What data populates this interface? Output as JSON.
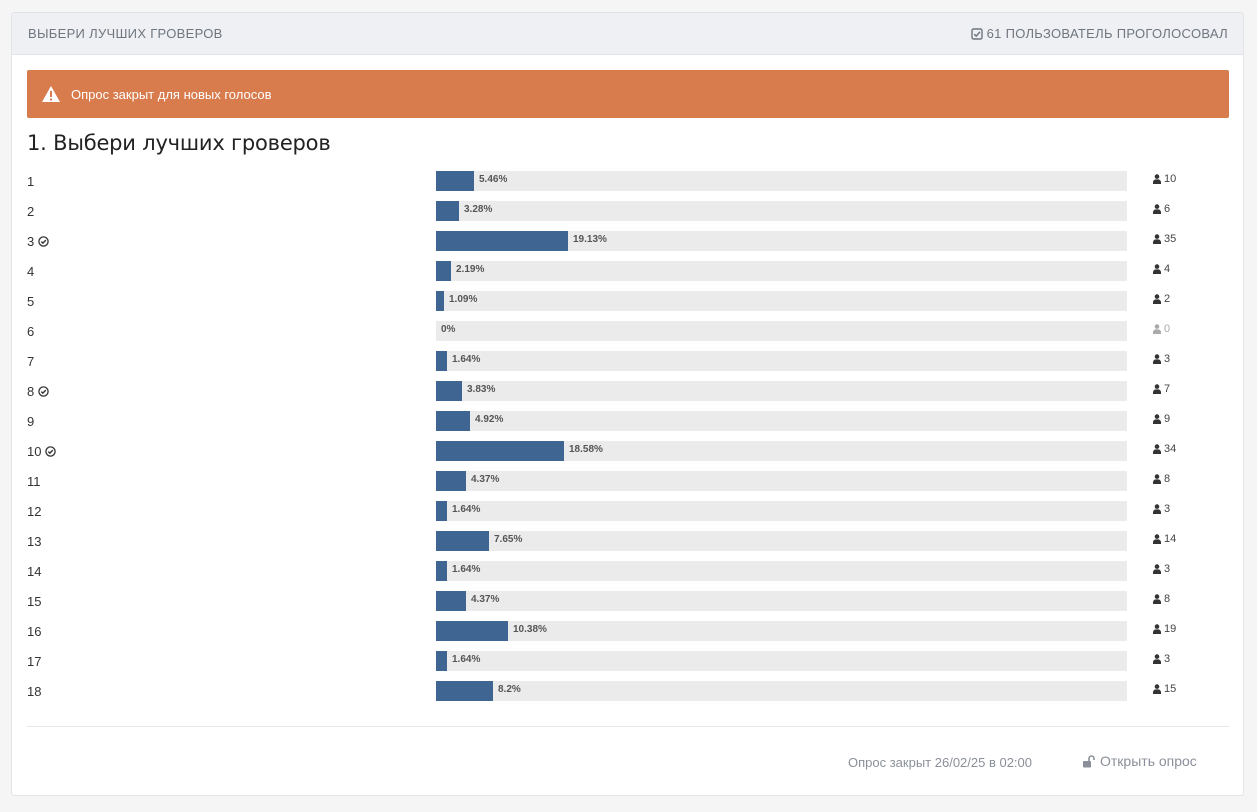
{
  "header": {
    "title": "ВЫБЕРИ ЛУЧШИХ ГРОВЕРОВ",
    "voters_label": "61 ПОЛЬЗОВАТЕЛЬ ПРОГОЛОСОВАЛ"
  },
  "alert": {
    "text": "Опрос закрыт для новых голосов"
  },
  "question": {
    "title": "1. Выбери лучших гроверов"
  },
  "options": [
    {
      "label": "1",
      "percent": 5.46,
      "percent_label": "5.46%",
      "votes": "10",
      "selected": false
    },
    {
      "label": "2",
      "percent": 3.28,
      "percent_label": "3.28%",
      "votes": "6",
      "selected": false
    },
    {
      "label": "3",
      "percent": 19.13,
      "percent_label": "19.13%",
      "votes": "35",
      "selected": true
    },
    {
      "label": "4",
      "percent": 2.19,
      "percent_label": "2.19%",
      "votes": "4",
      "selected": false
    },
    {
      "label": "5",
      "percent": 1.09,
      "percent_label": "1.09%",
      "votes": "2",
      "selected": false
    },
    {
      "label": "6",
      "percent": 0,
      "percent_label": "0%",
      "votes": "0",
      "selected": false
    },
    {
      "label": "7",
      "percent": 1.64,
      "percent_label": "1.64%",
      "votes": "3",
      "selected": false
    },
    {
      "label": "8",
      "percent": 3.83,
      "percent_label": "3.83%",
      "votes": "7",
      "selected": true
    },
    {
      "label": "9",
      "percent": 4.92,
      "percent_label": "4.92%",
      "votes": "9",
      "selected": false
    },
    {
      "label": "10",
      "percent": 18.58,
      "percent_label": "18.58%",
      "votes": "34",
      "selected": true
    },
    {
      "label": "11",
      "percent": 4.37,
      "percent_label": "4.37%",
      "votes": "8",
      "selected": false
    },
    {
      "label": "12",
      "percent": 1.64,
      "percent_label": "1.64%",
      "votes": "3",
      "selected": false
    },
    {
      "label": "13",
      "percent": 7.65,
      "percent_label": "7.65%",
      "votes": "14",
      "selected": false
    },
    {
      "label": "14",
      "percent": 1.64,
      "percent_label": "1.64%",
      "votes": "3",
      "selected": false
    },
    {
      "label": "15",
      "percent": 4.37,
      "percent_label": "4.37%",
      "votes": "8",
      "selected": false
    },
    {
      "label": "16",
      "percent": 10.38,
      "percent_label": "10.38%",
      "votes": "19",
      "selected": false
    },
    {
      "label": "17",
      "percent": 1.64,
      "percent_label": "1.64%",
      "votes": "3",
      "selected": false
    },
    {
      "label": "18",
      "percent": 8.2,
      "percent_label": "8.2%",
      "votes": "15",
      "selected": false
    }
  ],
  "footer": {
    "closed_text": "Опрос закрыт 26/02/25 в 02:00",
    "open_label": "Открыть опрос"
  },
  "colors": {
    "bar": "#3f6593",
    "track": "#ebebeb",
    "alert": "#d87c4e",
    "header_bg": "#eef0f3"
  },
  "icons": {
    "voters": "check-square-icon",
    "alert": "warning-icon",
    "selected": "check-circle-icon",
    "votes": "user-icon",
    "open": "unlock-icon"
  }
}
